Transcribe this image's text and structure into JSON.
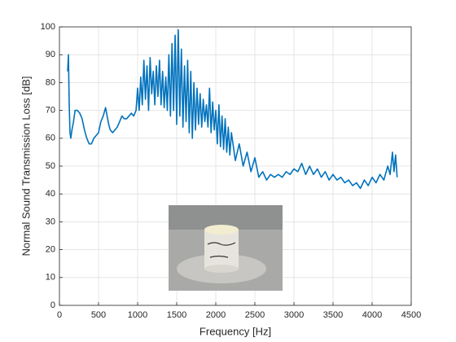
{
  "chart_data": {
    "type": "line",
    "x_label": "Frequency [Hz]",
    "y_label": "Normal Sound Transmission Loss [dB]",
    "x": [
      105,
      115,
      125,
      135,
      145,
      160,
      180,
      200,
      230,
      260,
      290,
      320,
      350,
      380,
      410,
      440,
      470,
      500,
      530,
      560,
      590,
      610,
      630,
      650,
      680,
      710,
      740,
      770,
      800,
      830,
      860,
      890,
      920,
      950,
      980,
      1000,
      1020,
      1040,
      1060,
      1080,
      1100,
      1120,
      1140,
      1160,
      1180,
      1200,
      1220,
      1240,
      1260,
      1280,
      1300,
      1320,
      1340,
      1360,
      1380,
      1400,
      1420,
      1440,
      1460,
      1480,
      1500,
      1520,
      1540,
      1560,
      1580,
      1600,
      1620,
      1640,
      1660,
      1680,
      1700,
      1720,
      1740,
      1760,
      1780,
      1800,
      1820,
      1840,
      1860,
      1880,
      1900,
      1920,
      1940,
      1960,
      1980,
      2000,
      2020,
      2040,
      2060,
      2080,
      2100,
      2120,
      2140,
      2160,
      2180,
      2200,
      2250,
      2300,
      2350,
      2400,
      2450,
      2500,
      2550,
      2600,
      2650,
      2700,
      2750,
      2800,
      2850,
      2900,
      2950,
      3000,
      3050,
      3100,
      3150,
      3200,
      3250,
      3300,
      3350,
      3400,
      3450,
      3500,
      3550,
      3600,
      3650,
      3700,
      3750,
      3800,
      3850,
      3900,
      3950,
      4000,
      4050,
      4100,
      4150,
      4200,
      4230,
      4260,
      4280,
      4300,
      4320
    ],
    "series": [
      {
        "color": "#0072bd",
        "values": [
          84,
          90,
          72,
          62,
          60,
          63,
          66,
          70,
          70,
          69,
          67,
          63,
          60,
          58,
          58,
          60,
          61,
          62,
          66,
          68,
          71,
          68,
          65,
          63,
          62,
          63,
          64,
          66,
          68,
          67,
          67,
          68,
          69,
          68,
          70,
          78,
          70,
          82,
          72,
          88,
          74,
          86,
          70,
          89,
          76,
          84,
          72,
          86,
          75,
          88,
          72,
          84,
          71,
          82,
          70,
          90,
          68,
          94,
          70,
          97,
          65,
          99,
          68,
          92,
          64,
          86,
          66,
          88,
          62,
          84,
          60,
          80,
          63,
          78,
          65,
          76,
          64,
          74,
          66,
          72,
          64,
          78,
          62,
          73,
          63,
          70,
          58,
          72,
          57,
          68,
          56,
          67,
          55,
          64,
          54,
          62,
          52,
          58,
          50,
          55,
          48,
          53,
          46,
          48,
          45,
          47,
          46,
          47,
          46,
          48,
          47,
          49,
          48,
          51,
          47,
          50,
          47,
          49,
          46,
          48,
          45,
          47,
          45,
          46,
          44,
          45,
          43,
          44,
          42,
          45,
          43,
          46,
          44,
          47,
          45,
          50,
          47,
          55,
          48,
          54,
          46
        ]
      }
    ],
    "xlim": [
      0,
      4500
    ],
    "ylim": [
      0,
      100
    ],
    "xticks": [
      0,
      500,
      1000,
      1500,
      2000,
      2500,
      3000,
      3500,
      4000,
      4500
    ],
    "yticks": [
      0,
      10,
      20,
      30,
      40,
      50,
      60,
      70,
      80,
      90,
      100
    ],
    "grid": true
  }
}
